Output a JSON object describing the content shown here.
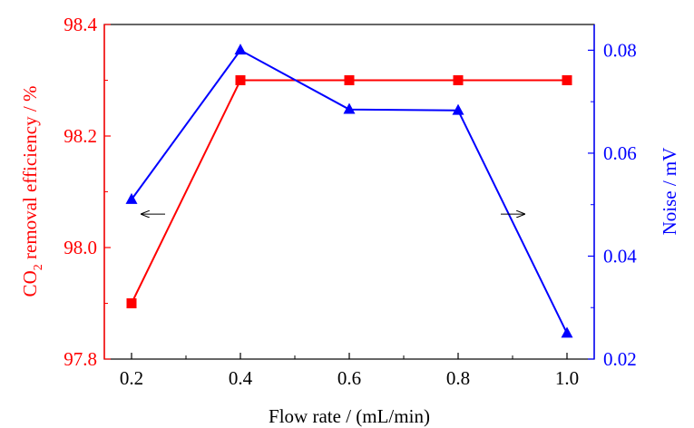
{
  "chart_data": {
    "type": "line",
    "title": "",
    "x": [
      0.2,
      0.4,
      0.6,
      0.8,
      1.0
    ],
    "xlabel": "Flow rate / (mL/min)",
    "xlim": [
      0.15,
      1.05
    ],
    "xticks": [
      "0.2",
      "0.4",
      "0.6",
      "0.8",
      "1.0"
    ],
    "left_axis": {
      "label_prefix": "CO",
      "label_subscript": "2",
      "label_suffix": " removal efficiency / %",
      "ylim": [
        97.8,
        98.4
      ],
      "ticks": [
        "97.8",
        "98.0",
        "98.2",
        "98.4"
      ],
      "color": "#ff0000"
    },
    "right_axis": {
      "label": "Noise / mV",
      "ylim": [
        0.02,
        0.085
      ],
      "ticks": [
        "0.02",
        "0.04",
        "0.06",
        "0.08"
      ],
      "color": "#0000ff"
    },
    "series": [
      {
        "name": "CO2 removal efficiency",
        "axis": "left",
        "marker": "square",
        "color": "#ff0000",
        "values": [
          97.9,
          98.3,
          98.3,
          98.3,
          98.3
        ]
      },
      {
        "name": "Noise",
        "axis": "right",
        "marker": "triangle",
        "color": "#0000ff",
        "values": [
          0.051,
          0.08,
          0.0685,
          0.0683,
          0.025
        ]
      }
    ],
    "annotations": [
      {
        "type": "arrow",
        "direction": "left",
        "points_to": "left axis",
        "x": 0.24,
        "y_left": 98.06
      },
      {
        "type": "arrow",
        "direction": "right",
        "points_to": "right axis",
        "x": 0.9,
        "y_left": 98.06
      }
    ]
  }
}
